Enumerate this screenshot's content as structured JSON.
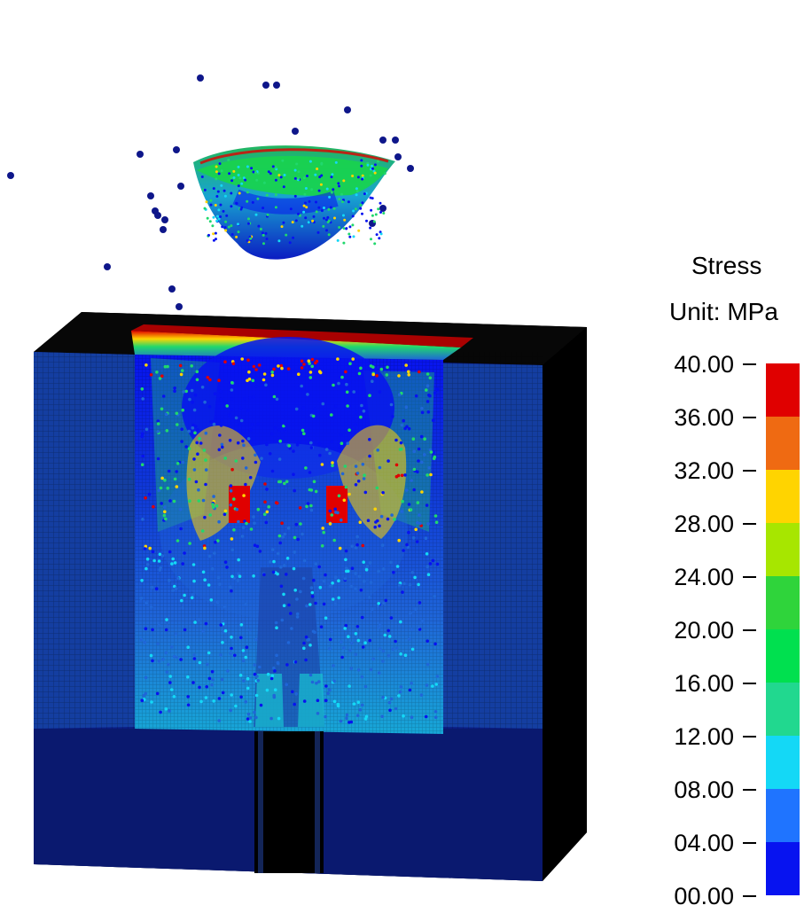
{
  "legend": {
    "title": "Stress",
    "unit": "Unit: MPa",
    "ticks": [
      "40.00",
      "36.00",
      "32.00",
      "28.00",
      "24.00",
      "20.00",
      "16.00",
      "12.00",
      "08.00",
      "04.00",
      "00.00"
    ],
    "colors": [
      "#e00000",
      "#ef6a12",
      "#ffd400",
      "#a7e600",
      "#2fd43b",
      "#00e04f",
      "#21d88f",
      "#14d8f6",
      "#1f74ff",
      "#0713f0"
    ]
  },
  "scene": {
    "palette": {
      "black": "#000000",
      "deep_blue": "#09157c",
      "blue": "#1b43ab",
      "mid_blue": "#1f66d8",
      "cyan": "#14d8f6",
      "green": "#20d86c",
      "yellow": "#ffd400",
      "red": "#e00000"
    }
  }
}
